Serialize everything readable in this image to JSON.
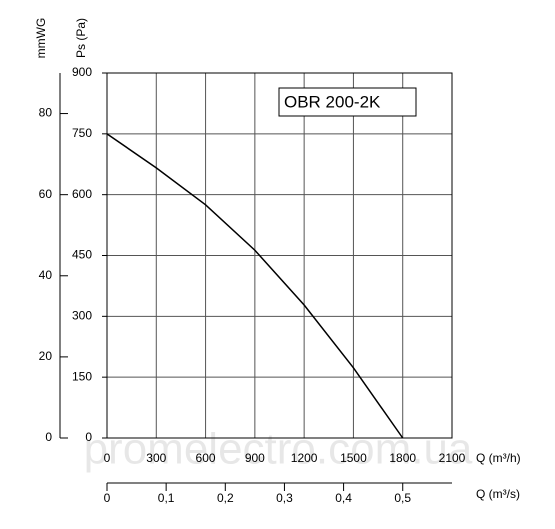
{
  "chart_data": {
    "type": "line",
    "x": [
      0,
      300,
      600,
      900,
      1200,
      1500,
      1800
    ],
    "series": [
      {
        "name": "OBR 200-2K",
        "color": "#000000",
        "values": [
          750,
          666,
          575,
          463,
          328,
          173,
          0
        ]
      }
    ],
    "xlabel": "Q (m³/h)",
    "ylabel": "Ps (Pa)",
    "y2label": "mmWG",
    "x2label": "Q (m³/s)",
    "xlim": [
      0,
      2100
    ],
    "xticks": [
      0,
      300,
      600,
      900,
      1200,
      1500,
      1800,
      2100
    ],
    "ylim": [
      0,
      900
    ],
    "yticks": [
      0,
      150,
      300,
      450,
      600,
      750,
      900
    ],
    "y2lim": [
      0,
      90
    ],
    "y2ticks": [
      0,
      20,
      40,
      60,
      80
    ],
    "x2lim": [
      0,
      0.5833
    ],
    "x2ticks": [
      0,
      {
        "value": 0.1,
        "label": "0,1"
      },
      {
        "value": 0.2,
        "label": "0,2"
      },
      {
        "value": 0.3,
        "label": "0,3"
      },
      {
        "value": 0.4,
        "label": "0,4"
      },
      {
        "value": 0.5,
        "label": "0,5"
      }
    ],
    "grid": true,
    "watermark": "promelectro.com.ua"
  }
}
